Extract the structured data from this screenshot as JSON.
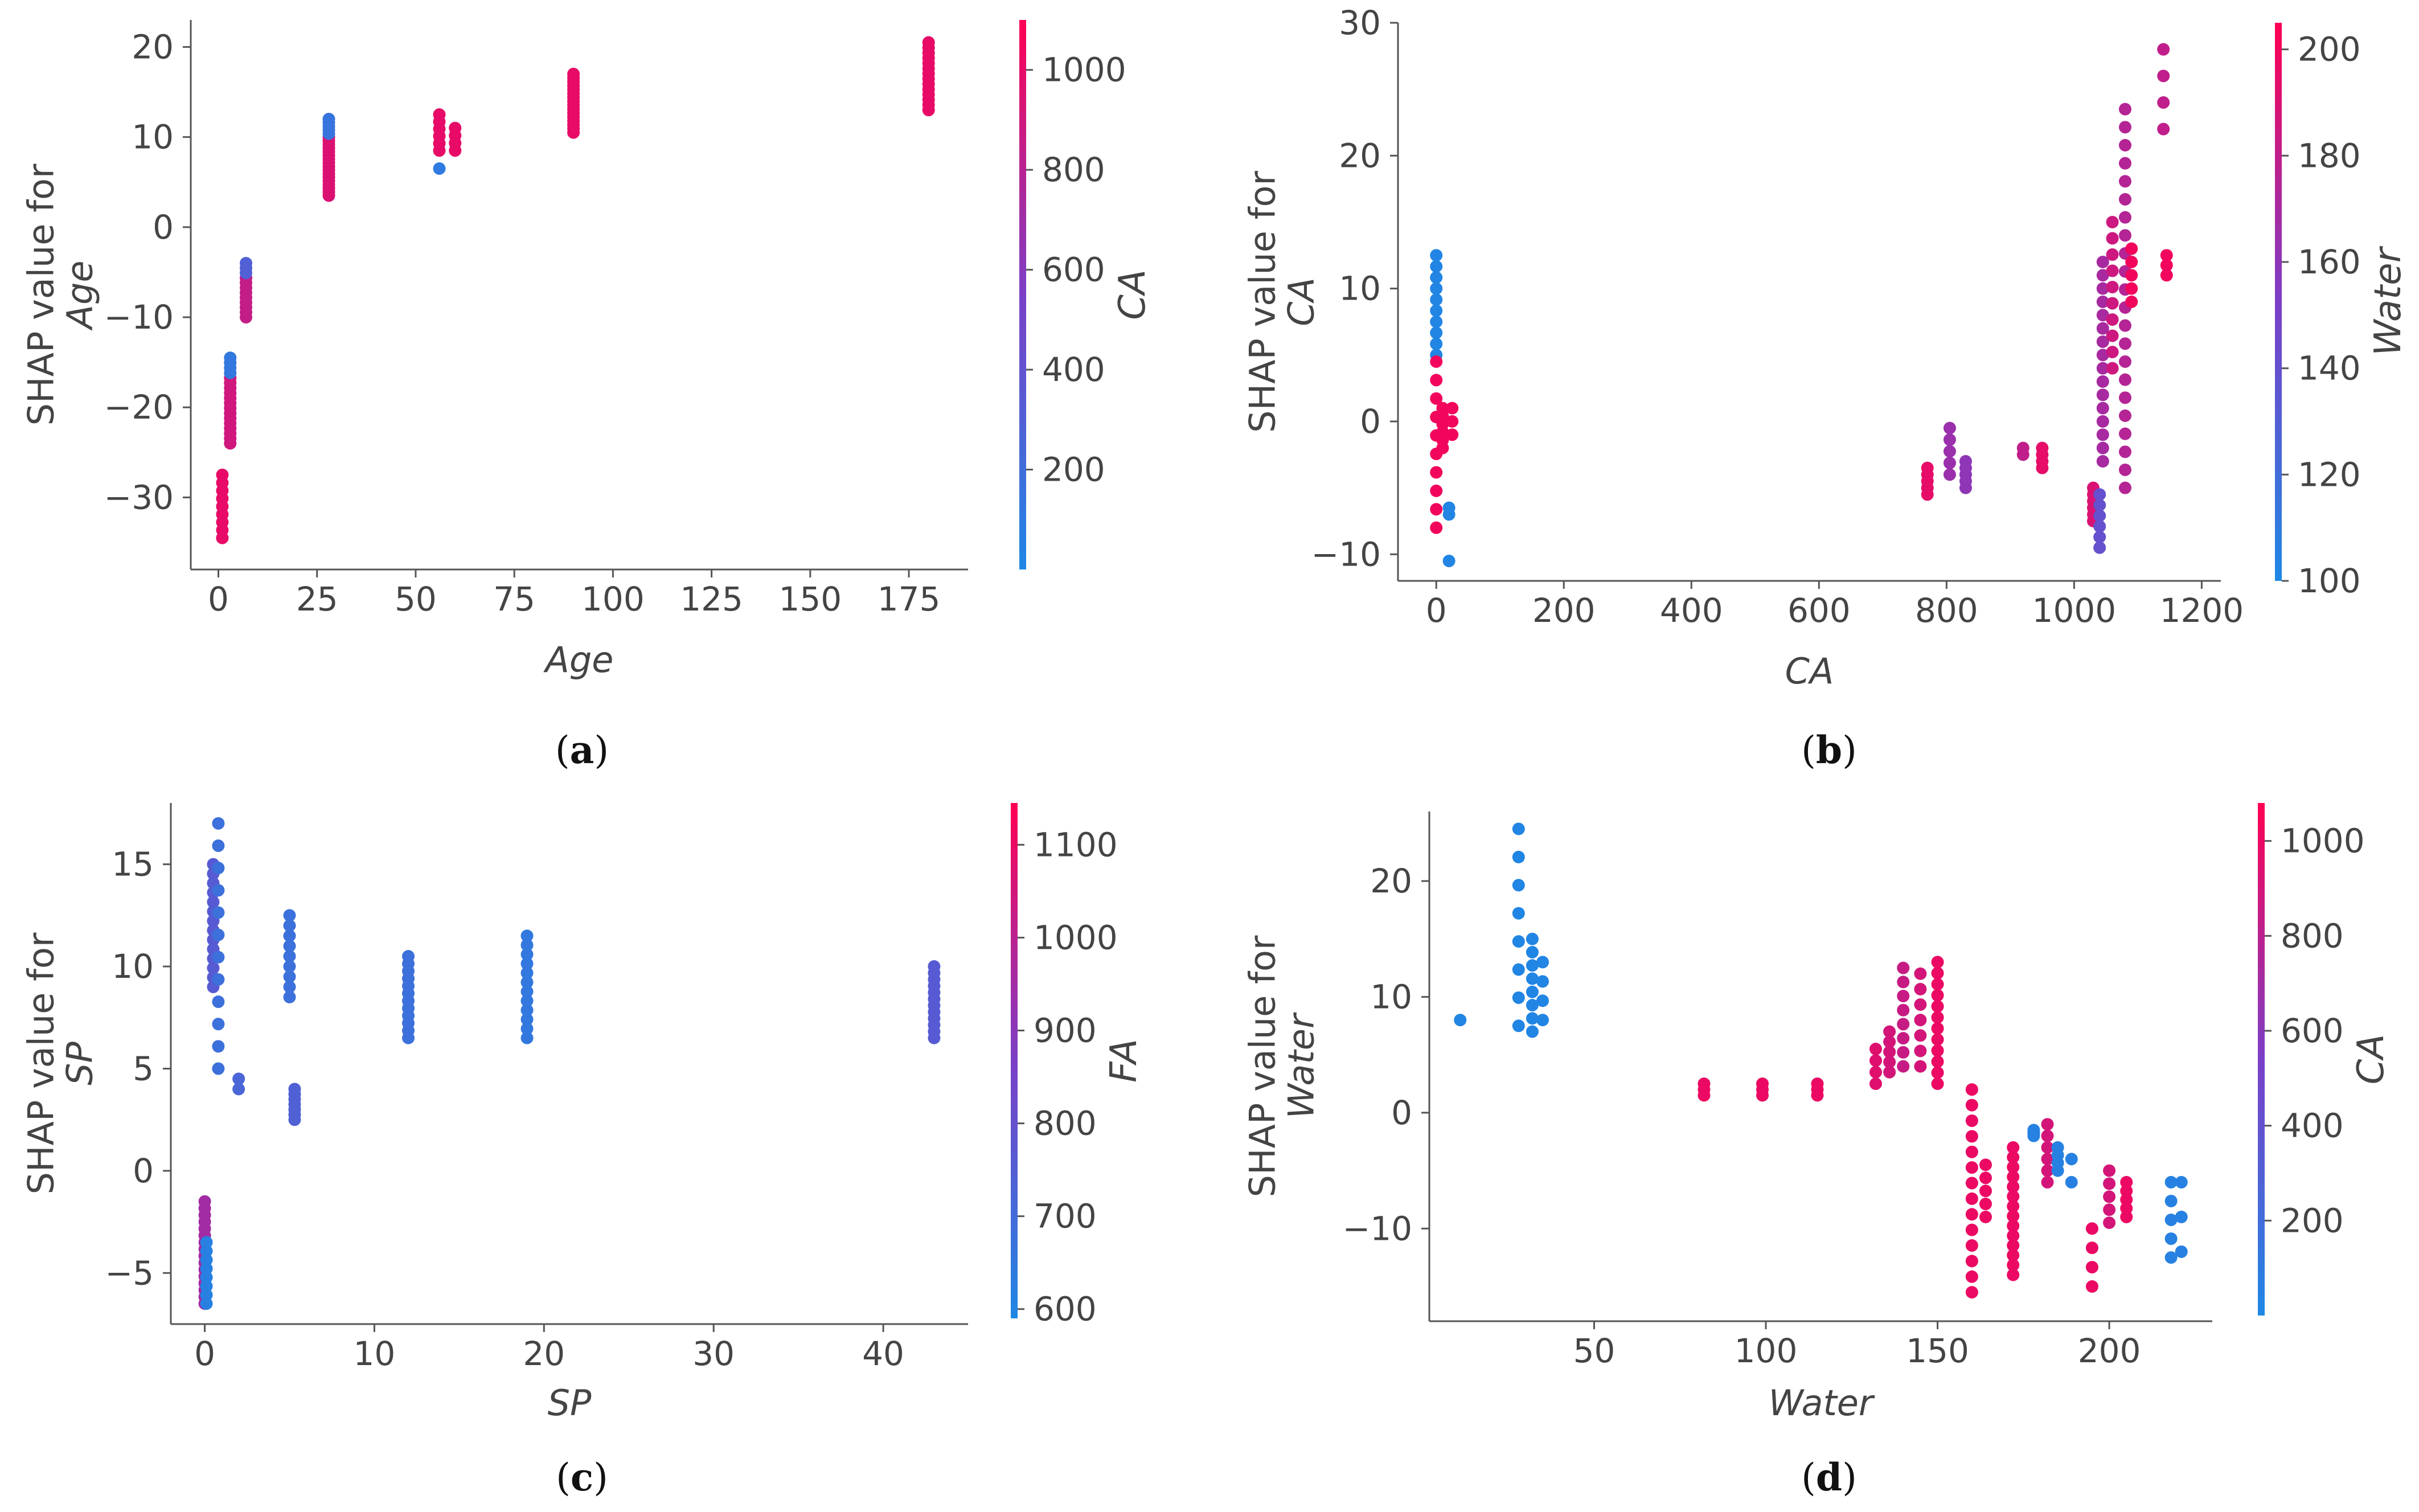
{
  "figure": {
    "captions": [
      {
        "open": "(",
        "letter": "a",
        "close": ")"
      },
      {
        "open": "(",
        "letter": "b",
        "close": ")"
      },
      {
        "open": "(",
        "letter": "c",
        "close": ")"
      },
      {
        "open": "(",
        "letter": "d",
        "close": ")"
      }
    ]
  },
  "colors": {
    "low": "#1e88e5",
    "mid": "#7b3fc7",
    "high": "#ff0052",
    "axis": "#555555",
    "text": "#444444"
  },
  "chart_data": [
    {
      "type": "scatter",
      "panel": "a",
      "title": "",
      "xlabel": "Age",
      "ylabel_line1": "SHAP value for",
      "ylabel_line2": "Age",
      "colorbar_label": "CA",
      "xlim": [
        -7,
        190
      ],
      "ylim": [
        -38,
        23
      ],
      "xticks": [
        0,
        25,
        50,
        75,
        100,
        125,
        150,
        175
      ],
      "yticks": [
        -30,
        -20,
        -10,
        0,
        10,
        20
      ],
      "clim": [
        0,
        1100
      ],
      "cticks": [
        200,
        400,
        600,
        800,
        1000
      ],
      "groups": [
        {
          "x": 1,
          "y_min": -34.5,
          "y_max": -27.5,
          "n": 9,
          "c": 1000
        },
        {
          "x": 3,
          "y_min": -24,
          "y_max": -14.5,
          "n": 18,
          "c": 900,
          "c_top": 120
        },
        {
          "x": 7,
          "y_min": -10,
          "y_max": -4,
          "n": 12,
          "c": 850,
          "c_top": 300
        },
        {
          "x": 28,
          "y_min": 3.5,
          "y_max": 12,
          "n": 22,
          "c": 950,
          "c_top": 150
        },
        {
          "x": 56,
          "y_min": 8.5,
          "y_max": 12.5,
          "n": 6,
          "c": 1000
        },
        {
          "x": 56,
          "y_min": 6.5,
          "y_max": 6.5,
          "n": 1,
          "c": 100
        },
        {
          "x": 60,
          "y_min": 8.5,
          "y_max": 11,
          "n": 4,
          "c": 1000
        },
        {
          "x": 90,
          "y_min": 10.5,
          "y_max": 17,
          "n": 16,
          "c": 1000
        },
        {
          "x": 180,
          "y_min": 13,
          "y_max": 20.5,
          "n": 14,
          "c": 1000
        }
      ]
    },
    {
      "type": "scatter",
      "panel": "b",
      "title": "",
      "xlabel": "CA",
      "ylabel_line1": "SHAP value for",
      "ylabel_line2": "CA",
      "colorbar_label": "Water",
      "xlim": [
        -60,
        1230
      ],
      "ylim": [
        -12,
        30
      ],
      "xticks": [
        0,
        200,
        400,
        600,
        800,
        1000,
        1200
      ],
      "yticks": [
        -10,
        0,
        10,
        20,
        30
      ],
      "clim": [
        100,
        205
      ],
      "cticks": [
        100,
        120,
        140,
        160,
        180,
        200
      ],
      "groups": [
        {
          "x": 0,
          "y_min": 5,
          "y_max": 12.5,
          "n": 10,
          "c": 102
        },
        {
          "x": 0,
          "y_min": -8,
          "y_max": 4.5,
          "n": 10,
          "c": 200
        },
        {
          "x": 10,
          "y_min": -2,
          "y_max": 1,
          "n": 6,
          "c": 200
        },
        {
          "x": 20,
          "y_min": -7,
          "y_max": -6.5,
          "n": 2,
          "c": 102
        },
        {
          "x": 25,
          "y_min": -1,
          "y_max": 1,
          "n": 3,
          "c": 200
        },
        {
          "x": 20,
          "y_min": -10.5,
          "y_max": -10.5,
          "n": 1,
          "c": 102
        },
        {
          "x": 770,
          "y_min": -5.5,
          "y_max": -3.5,
          "n": 5,
          "c": 195
        },
        {
          "x": 805,
          "y_min": -4,
          "y_max": -0.5,
          "n": 5,
          "c": 165
        },
        {
          "x": 830,
          "y_min": -5,
          "y_max": -3,
          "n": 5,
          "c": 160
        },
        {
          "x": 920,
          "y_min": -2.5,
          "y_max": -2,
          "n": 2,
          "c": 180
        },
        {
          "x": 950,
          "y_min": -3.5,
          "y_max": -2,
          "n": 4,
          "c": 195
        },
        {
          "x": 1030,
          "y_min": -7.5,
          "y_max": -5,
          "n": 6,
          "c": 190
        },
        {
          "x": 1040,
          "y_min": -9.5,
          "y_max": -5.5,
          "n": 6,
          "c": 140
        },
        {
          "x": 1045,
          "y_min": -3,
          "y_max": 12,
          "n": 16,
          "c": 170
        },
        {
          "x": 1060,
          "y_min": 4,
          "y_max": 15,
          "n": 10,
          "c": 185
        },
        {
          "x": 1080,
          "y_min": -5,
          "y_max": 23.5,
          "n": 22,
          "c": 175
        },
        {
          "x": 1090,
          "y_min": 9,
          "y_max": 13,
          "n": 5,
          "c": 200
        },
        {
          "x": 1140,
          "y_min": 22,
          "y_max": 28,
          "n": 4,
          "c": 180
        },
        {
          "x": 1145,
          "y_min": 11,
          "y_max": 12.5,
          "n": 3,
          "c": 200
        }
      ]
    },
    {
      "type": "scatter",
      "panel": "c",
      "title": "",
      "xlabel": "SP",
      "ylabel_line1": "SHAP value for",
      "ylabel_line2": "SP",
      "colorbar_label": "FA",
      "xlim": [
        -2,
        45
      ],
      "ylim": [
        -7.5,
        18
      ],
      "xticks": [
        0,
        10,
        20,
        30,
        40
      ],
      "yticks": [
        -5,
        0,
        5,
        10,
        15
      ],
      "clim": [
        590,
        1145
      ],
      "cticks": [
        600,
        700,
        800,
        900,
        1000,
        1100
      ],
      "groups": [
        {
          "x": 0,
          "y_min": -6.5,
          "y_max": -1.5,
          "n": 16,
          "c": 950
        },
        {
          "x": 0.1,
          "y_min": -6.5,
          "y_max": -3.5,
          "n": 8,
          "c": 620
        },
        {
          "x": 0.5,
          "y_min": 9,
          "y_max": 15,
          "n": 14,
          "c": 760
        },
        {
          "x": 0.8,
          "y_min": 5,
          "y_max": 17,
          "n": 12,
          "c": 680
        },
        {
          "x": 2,
          "y_min": 4,
          "y_max": 4.5,
          "n": 2,
          "c": 720
        },
        {
          "x": 5,
          "y_min": 8.5,
          "y_max": 12.5,
          "n": 9,
          "c": 680
        },
        {
          "x": 5.3,
          "y_min": 2.5,
          "y_max": 4,
          "n": 7,
          "c": 740
        },
        {
          "x": 12,
          "y_min": 6.5,
          "y_max": 10.5,
          "n": 12,
          "c": 680
        },
        {
          "x": 19,
          "y_min": 6.5,
          "y_max": 11.5,
          "n": 12,
          "c": 650
        },
        {
          "x": 43,
          "y_min": 6.5,
          "y_max": 10,
          "n": 12,
          "c": 760
        }
      ]
    },
    {
      "type": "scatter",
      "panel": "d",
      "title": "",
      "xlabel": "Water",
      "ylabel_line1": "SHAP value for",
      "ylabel_line2": "Water",
      "colorbar_label": "CA",
      "xlim": [
        2,
        230
      ],
      "ylim": [
        -18,
        26
      ],
      "xticks": [
        50,
        100,
        150,
        200
      ],
      "yticks": [
        -10,
        0,
        10,
        20
      ],
      "clim": [
        0,
        1080
      ],
      "cticks": [
        200,
        400,
        600,
        800,
        1000
      ],
      "groups": [
        {
          "x": 11,
          "y_min": 8,
          "y_max": 8,
          "n": 1,
          "c": 20
        },
        {
          "x": 28,
          "y_min": 7.5,
          "y_max": 24.5,
          "n": 8,
          "c": 20
        },
        {
          "x": 32,
          "y_min": 7,
          "y_max": 15,
          "n": 8,
          "c": 20
        },
        {
          "x": 35,
          "y_min": 8,
          "y_max": 13,
          "n": 4,
          "c": 20
        },
        {
          "x": 82,
          "y_min": 1.5,
          "y_max": 2.5,
          "n": 3,
          "c": 1000
        },
        {
          "x": 99,
          "y_min": 1.5,
          "y_max": 2.5,
          "n": 3,
          "c": 1000
        },
        {
          "x": 115,
          "y_min": 1.5,
          "y_max": 2.5,
          "n": 3,
          "c": 1000
        },
        {
          "x": 132,
          "y_min": 2.5,
          "y_max": 5.5,
          "n": 4,
          "c": 950
        },
        {
          "x": 136,
          "y_min": 3.5,
          "y_max": 7,
          "n": 5,
          "c": 900
        },
        {
          "x": 140,
          "y_min": 4,
          "y_max": 12.5,
          "n": 8,
          "c": 850
        },
        {
          "x": 145,
          "y_min": 4,
          "y_max": 12,
          "n": 7,
          "c": 900
        },
        {
          "x": 150,
          "y_min": 2.5,
          "y_max": 13,
          "n": 12,
          "c": 1000
        },
        {
          "x": 160,
          "y_min": -15.5,
          "y_max": 2,
          "n": 14,
          "c": 1000
        },
        {
          "x": 164,
          "y_min": -9,
          "y_max": -4.5,
          "n": 5,
          "c": 1000
        },
        {
          "x": 172,
          "y_min": -14,
          "y_max": -3,
          "n": 14,
          "c": 1000
        },
        {
          "x": 178,
          "y_min": -2,
          "y_max": -1.5,
          "n": 4,
          "c": 50
        },
        {
          "x": 182,
          "y_min": -6,
          "y_max": -1,
          "n": 6,
          "c": 900
        },
        {
          "x": 185,
          "y_min": -5,
          "y_max": -3,
          "n": 4,
          "c": 50
        },
        {
          "x": 189,
          "y_min": -6,
          "y_max": -4,
          "n": 2,
          "c": 50
        },
        {
          "x": 195,
          "y_min": -15,
          "y_max": -10,
          "n": 4,
          "c": 1000
        },
        {
          "x": 200,
          "y_min": -9.5,
          "y_max": -5,
          "n": 5,
          "c": 900
        },
        {
          "x": 205,
          "y_min": -9,
          "y_max": -6,
          "n": 5,
          "c": 1000
        },
        {
          "x": 218,
          "y_min": -12.5,
          "y_max": -6,
          "n": 5,
          "c": 50
        },
        {
          "x": 221,
          "y_min": -12,
          "y_max": -6,
          "n": 3,
          "c": 50
        }
      ]
    }
  ]
}
